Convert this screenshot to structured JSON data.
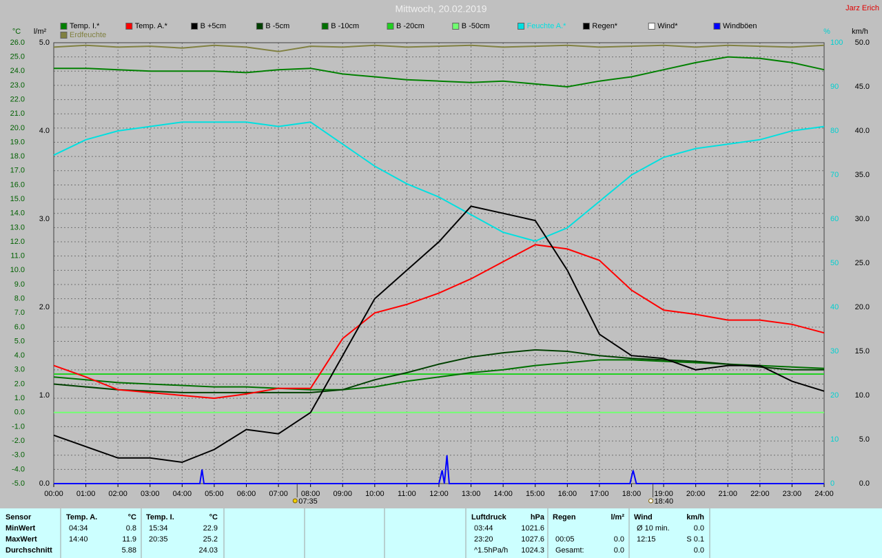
{
  "chart_data": {
    "type": "line",
    "title": "Mittwoch, 20.02.2019",
    "author": "Jarz Erich",
    "y_label": "°C",
    "y2_label": "l/m²",
    "y3_label": "%",
    "y4_label": "km/h",
    "xlim": [
      0,
      24
    ],
    "xticks": [
      {
        "value": 0,
        "label": "00:00"
      },
      {
        "value": 1,
        "label": "01:00"
      },
      {
        "value": 2,
        "label": "02:00"
      },
      {
        "value": 3,
        "label": "03:00"
      },
      {
        "value": 4,
        "label": "04:00"
      },
      {
        "value": 5,
        "label": "05:00"
      },
      {
        "value": 6,
        "label": "06:00"
      },
      {
        "value": 7,
        "label": "07:00"
      },
      {
        "value": 8,
        "label": "08:00"
      },
      {
        "value": 9,
        "label": "09:00"
      },
      {
        "value": 10,
        "label": "10:00"
      },
      {
        "value": 11,
        "label": "11:00"
      },
      {
        "value": 12,
        "label": "12:00"
      },
      {
        "value": 13,
        "label": "13:00"
      },
      {
        "value": 14,
        "label": "14:00"
      },
      {
        "value": 15,
        "label": "15:00"
      },
      {
        "value": 16,
        "label": "16:00"
      },
      {
        "value": 17,
        "label": "17:00"
      },
      {
        "value": 18,
        "label": "18:00"
      },
      {
        "value": 19,
        "label": "19:00"
      },
      {
        "value": 20,
        "label": "20:00"
      },
      {
        "value": 21,
        "label": "21:00"
      },
      {
        "value": 22,
        "label": "22:00"
      },
      {
        "value": 23,
        "label": "23:00"
      },
      {
        "value": 24,
        "label": "24:00"
      }
    ],
    "ylim": [
      -5,
      26
    ],
    "yticks": [
      {
        "value": -5,
        "label": "-5.0"
      },
      {
        "value": -4,
        "label": "-4.0"
      },
      {
        "value": -3,
        "label": "-3.0"
      },
      {
        "value": -2,
        "label": "-2.0"
      },
      {
        "value": -1,
        "label": "-1.0"
      },
      {
        "value": 0,
        "label": "0.0"
      },
      {
        "value": 1,
        "label": "1.0"
      },
      {
        "value": 2,
        "label": "2.0"
      },
      {
        "value": 3,
        "label": "3.0"
      },
      {
        "value": 4,
        "label": "4.0"
      },
      {
        "value": 5,
        "label": "5.0"
      },
      {
        "value": 6,
        "label": "6.0"
      },
      {
        "value": 7,
        "label": "7.0"
      },
      {
        "value": 8,
        "label": "8.0"
      },
      {
        "value": 9,
        "label": "9.0"
      },
      {
        "value": 10,
        "label": "10.0"
      },
      {
        "value": 11,
        "label": "11.0"
      },
      {
        "value": 12,
        "label": "12.0"
      },
      {
        "value": 13,
        "label": "13.0"
      },
      {
        "value": 14,
        "label": "14.0"
      },
      {
        "value": 15,
        "label": "15.0"
      },
      {
        "value": 16,
        "label": "16.0"
      },
      {
        "value": 17,
        "label": "17.0"
      },
      {
        "value": 18,
        "label": "18.0"
      },
      {
        "value": 19,
        "label": "19.0"
      },
      {
        "value": 20,
        "label": "20.0"
      },
      {
        "value": 21,
        "label": "21.0"
      },
      {
        "value": 22,
        "label": "22.0"
      },
      {
        "value": 23,
        "label": "23.0"
      },
      {
        "value": 24,
        "label": "24.0"
      },
      {
        "value": 25,
        "label": "25.0"
      },
      {
        "value": 26,
        "label": "26.0"
      }
    ],
    "y2lim": [
      0,
      5
    ],
    "y2ticks": [
      {
        "value": 0,
        "label": "0.0"
      },
      {
        "value": 1,
        "label": "1.0"
      },
      {
        "value": 2,
        "label": "2.0"
      },
      {
        "value": 3,
        "label": "3.0"
      },
      {
        "value": 4,
        "label": "4.0"
      },
      {
        "value": 5,
        "label": "5.0"
      }
    ],
    "y3lim": [
      0,
      100
    ],
    "y3ticks": [
      0,
      10,
      20,
      30,
      40,
      50,
      60,
      70,
      80,
      90,
      100
    ],
    "y4lim": [
      0,
      50
    ],
    "y4ticks": [
      {
        "value": 0,
        "label": "0.0"
      },
      {
        "value": 5,
        "label": "5.0"
      },
      {
        "value": 10,
        "label": "10.0"
      },
      {
        "value": 15,
        "label": "15.0"
      },
      {
        "value": 20,
        "label": "20.0"
      },
      {
        "value": 25,
        "label": "25.0"
      },
      {
        "value": 30,
        "label": "30.0"
      },
      {
        "value": 35,
        "label": "35.0"
      },
      {
        "value": 40,
        "label": "40.0"
      },
      {
        "value": 45,
        "label": "45.0"
      },
      {
        "value": 50,
        "label": "50.0"
      }
    ],
    "grid": true,
    "x": [
      0,
      1,
      2,
      3,
      4,
      5,
      6,
      7,
      8,
      9,
      10,
      11,
      12,
      13,
      14,
      15,
      16,
      17,
      18,
      19,
      20,
      21,
      22,
      23,
      24
    ],
    "series": [
      {
        "name": "Temp. I.*",
        "color": "#008000",
        "values": [
          24.2,
          24.2,
          24.1,
          24.0,
          24.0,
          24.0,
          23.9,
          24.1,
          24.2,
          23.8,
          23.6,
          23.4,
          23.3,
          23.2,
          23.3,
          23.1,
          22.9,
          23.3,
          23.6,
          24.1,
          24.6,
          25.0,
          24.9,
          24.6,
          24.1
        ]
      },
      {
        "name": "Temp. A.*",
        "color": "#ff0000",
        "values": [
          3.3,
          2.5,
          1.6,
          1.4,
          1.2,
          1.0,
          1.3,
          1.7,
          1.7,
          5.2,
          7.0,
          7.6,
          8.4,
          9.4,
          10.6,
          11.8,
          11.5,
          10.7,
          8.6,
          7.2,
          6.9,
          6.5,
          6.5,
          6.2,
          5.6
        ]
      },
      {
        "name": "B +5cm",
        "color": "#000000",
        "values": [
          -1.6,
          -2.4,
          -3.2,
          -3.2,
          -3.5,
          -2.6,
          -1.2,
          -1.5,
          0.0,
          4.0,
          8.0,
          10.0,
          12.0,
          14.5,
          14.0,
          13.5,
          10.0,
          5.5,
          4.0,
          3.8,
          3.0,
          3.3,
          3.3,
          2.2,
          1.5
        ]
      },
      {
        "name": "B -5cm",
        "color": "#004000",
        "values": [
          2.0,
          1.8,
          1.6,
          1.5,
          1.4,
          1.4,
          1.4,
          1.4,
          1.4,
          1.6,
          2.3,
          2.8,
          3.4,
          3.9,
          4.2,
          4.4,
          4.3,
          4.0,
          3.8,
          3.7,
          3.6,
          3.4,
          3.2,
          3.0,
          3.0
        ]
      },
      {
        "name": "B -10cm",
        "color": "#007000",
        "values": [
          2.5,
          2.3,
          2.1,
          2.0,
          1.9,
          1.8,
          1.8,
          1.7,
          1.6,
          1.6,
          1.8,
          2.2,
          2.5,
          2.8,
          3.0,
          3.3,
          3.5,
          3.7,
          3.7,
          3.6,
          3.5,
          3.4,
          3.3,
          3.2,
          3.1
        ]
      },
      {
        "name": "B -20cm",
        "color": "#20d020",
        "values": [
          2.7,
          2.7,
          2.7,
          2.7,
          2.7,
          2.7,
          2.7,
          2.7,
          2.7,
          2.7,
          2.7,
          2.7,
          2.7,
          2.7,
          2.7,
          2.7,
          2.7,
          2.7,
          2.7,
          2.7,
          2.7,
          2.7,
          2.7,
          2.7,
          2.7
        ]
      },
      {
        "name": "B -50cm",
        "color": "#70ff70",
        "values": [
          0,
          0,
          0,
          0,
          0,
          0,
          0,
          0,
          0,
          0,
          0,
          0,
          0,
          0,
          0,
          0,
          0,
          0,
          0,
          0,
          0,
          0,
          0,
          0,
          0
        ]
      },
      {
        "name": "Feuchte A.*",
        "color": "#00e0e0",
        "axis": "y3",
        "values": [
          74.5,
          78,
          80,
          81,
          82,
          82,
          82,
          81,
          82,
          77,
          72,
          68,
          65,
          61,
          57,
          55,
          58,
          64,
          70,
          74,
          76,
          77,
          78,
          80,
          81
        ]
      },
      {
        "name": "Regen*",
        "color": "#000000",
        "axis": "y2"
      },
      {
        "name": "Wind*",
        "color": "#ffffff",
        "axis": "y4"
      },
      {
        "name": "Windböen",
        "color": "#0000ff",
        "axis": "y4",
        "x": [
          0,
          4.55,
          4.62,
          4.68,
          12.0,
          12.1,
          12.17,
          12.25,
          12.32,
          17.95,
          18.05,
          18.15,
          24
        ],
        "values": [
          0,
          0,
          1.6,
          0,
          0,
          1.5,
          0,
          3.2,
          0,
          0,
          1.5,
          0,
          0
        ]
      },
      {
        "name": "Erdfeuchte",
        "color": "#808040",
        "axis": "y2",
        "values": [
          4.95,
          4.97,
          4.95,
          4.96,
          4.94,
          4.97,
          4.95,
          4.9,
          4.96,
          4.95,
          4.97,
          4.95,
          4.96,
          4.97,
          4.95,
          4.96,
          4.97,
          4.95,
          4.96,
          4.97,
          4.95,
          4.97,
          4.96,
          4.95,
          4.97
        ]
      }
    ],
    "annotations": [
      {
        "x": 7.583,
        "label": "07:35"
      },
      {
        "x": 18.667,
        "label": "18:40"
      }
    ]
  },
  "stats_table": {
    "corner": "Sensor",
    "row_labels": [
      "MinWert",
      "MaxWert",
      "Durchschnitt"
    ],
    "groups": [
      {
        "name": "Temp. A.",
        "unit": "°C",
        "rows": [
          {
            "time": "04:34",
            "value": "0.8"
          },
          {
            "time": "14:40",
            "value": "11.9"
          },
          {
            "value": "5.88"
          }
        ]
      },
      {
        "name": "Temp. I.",
        "unit": "°C",
        "rows": [
          {
            "time": "15:34",
            "value": "22.9"
          },
          {
            "time": "20:35",
            "value": "25.2"
          },
          {
            "value": "24.03"
          }
        ]
      },
      {
        "name": "Luftdruck",
        "unit": "hPa",
        "rows": [
          {
            "time": "03:44",
            "value": "1021.6"
          },
          {
            "time": "23:20",
            "value": "1027.6"
          },
          {
            "time": "^1.5hPa/h",
            "value": "1024.3"
          }
        ]
      },
      {
        "name": "Regen",
        "unit": "l/m²",
        "rows": [
          null,
          {
            "time": "00:05",
            "value": "0.0"
          },
          {
            "time": "Gesamt:",
            "value": "0.0"
          }
        ]
      },
      {
        "name": "Wind",
        "unit": "km/h",
        "rows": [
          {
            "time": "Ø 10 min.",
            "value": "0.0"
          },
          {
            "time": "12:15",
            "value": "S 0.1"
          },
          {
            "value": "0.0"
          }
        ]
      }
    ]
  }
}
